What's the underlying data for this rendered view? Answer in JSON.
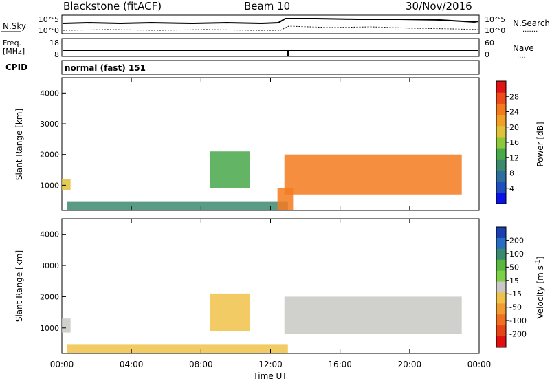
{
  "header": {
    "station": "Blackstone (fitACF)",
    "beam": "Beam 10",
    "date": "30/Nov/2016"
  },
  "noise_panel": {
    "left_label": "N.Sky",
    "left_ticks": [
      "10^5",
      "10^0"
    ],
    "right_ticks": [
      "10^5",
      "10^0"
    ],
    "right_label": "N.Search",
    "right_dots": "......."
  },
  "freq_panel": {
    "label_line1": "Freq.",
    "label_line2": "[MHz]",
    "left_ticks": [
      "18",
      "8"
    ],
    "right_ticks": [
      "60",
      "0"
    ],
    "right_label": "Nave",
    "right_dots": "...."
  },
  "cpid": {
    "label": "CPID",
    "value": "normal (fast) 151"
  },
  "axes": {
    "ylabel": "Slant Range [km]",
    "yticks": [
      "1000",
      "2000",
      "3000",
      "4000"
    ],
    "xticks": [
      "00:00",
      "04:00",
      "08:00",
      "12:00",
      "16:00",
      "20:00",
      "00:00"
    ],
    "xlabel": "Time UT"
  },
  "colorbars": {
    "power": {
      "label": "Power [dB]",
      "ticks": [
        "4",
        "8",
        "12",
        "16",
        "20",
        "24",
        "28"
      ],
      "colors": [
        "#0a14e6",
        "#1f4fbf",
        "#2e6e9e",
        "#3c8a6e",
        "#48a84a",
        "#8cc83c",
        "#dfc23a",
        "#f0a028",
        "#f47a1e",
        "#ee4a1c",
        "#e01414"
      ]
    },
    "velocity": {
      "label_main": "Velocity [m s",
      "label_sup": "-1",
      "label_end": "]",
      "ticks": [
        "200",
        "100",
        "50",
        "15",
        "-15",
        "-50",
        "-100",
        "-200"
      ],
      "colors": [
        "#1b3fb0",
        "#2a6cc0",
        "#3c8a6e",
        "#5ab840",
        "#7ed048",
        "#c8c8c4",
        "#f0c24a",
        "#f09c30",
        "#f07020",
        "#e84418",
        "#e01010"
      ]
    }
  },
  "chart_data": {
    "type": "heatmap",
    "x_range_hours": [
      0,
      24
    ],
    "y_range_km": [
      180,
      4500
    ],
    "panels": [
      {
        "name": "Power",
        "features": [
          {
            "t": [
              0.0,
              0.5
            ],
            "r": [
              850,
              1200
            ],
            "value_db": 20
          },
          {
            "t": [
              0.3,
              13.0
            ],
            "r": [
              180,
              480
            ],
            "value_db": 10
          },
          {
            "t": [
              8.5,
              10.8
            ],
            "r": [
              900,
              2100
            ],
            "value_db": 14
          },
          {
            "t": [
              12.4,
              13.3
            ],
            "r": [
              200,
              900
            ],
            "value_db": 24
          },
          {
            "t": [
              12.8,
              23.0
            ],
            "r": [
              700,
              2000
            ],
            "value_db": 26
          }
        ]
      },
      {
        "name": "Velocity",
        "features": [
          {
            "t": [
              0.0,
              0.5
            ],
            "r": [
              850,
              1300
            ],
            "value_ms": 0
          },
          {
            "t": [
              0.3,
              13.0
            ],
            "r": [
              180,
              480
            ],
            "value_ms": -30
          },
          {
            "t": [
              8.5,
              10.8
            ],
            "r": [
              900,
              2100
            ],
            "value_ms": -70
          },
          {
            "t": [
              12.8,
              23.0
            ],
            "r": [
              800,
              2000
            ],
            "value_ms": 0
          }
        ]
      }
    ],
    "colorbars": [
      {
        "name": "Power [dB]",
        "range": [
          0,
          32
        ]
      },
      {
        "name": "Velocity [m s-1]",
        "range": [
          -250,
          250
        ]
      }
    ]
  }
}
